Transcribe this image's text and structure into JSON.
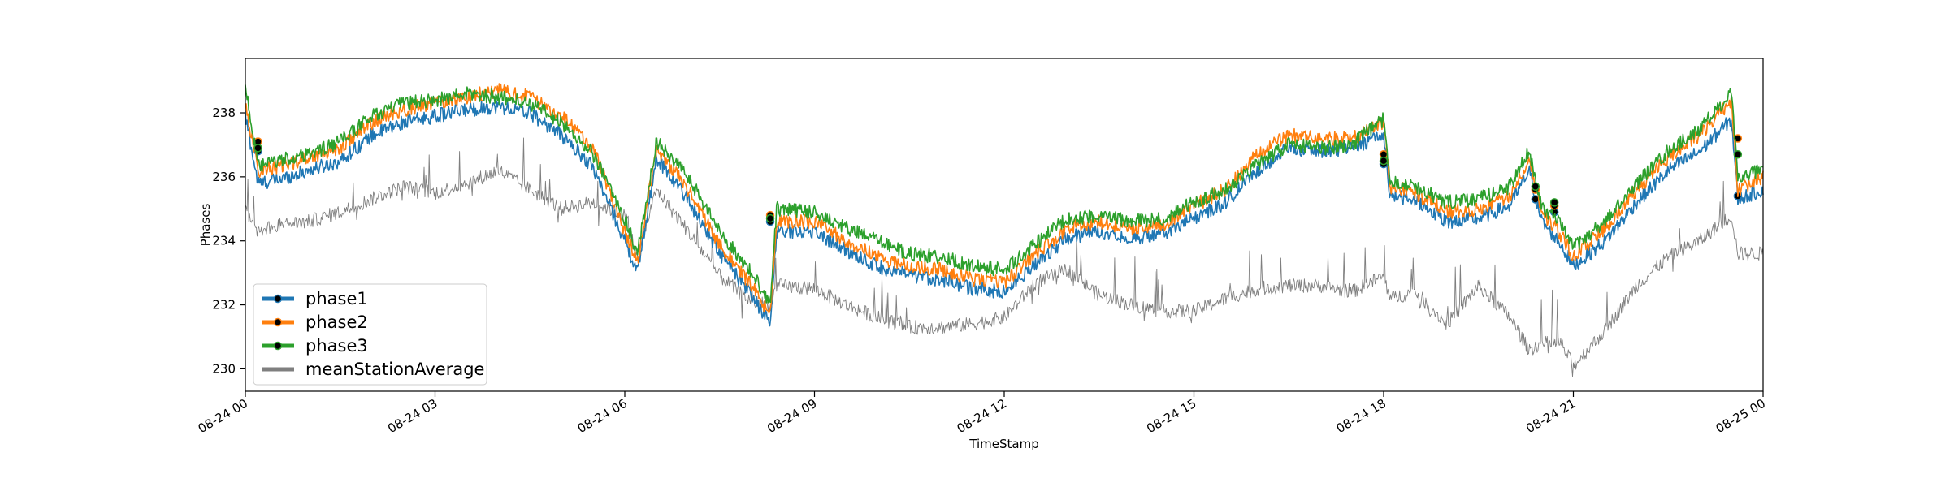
{
  "chart_data": {
    "type": "line",
    "title": "",
    "xlabel": "TimeStamp",
    "ylabel": "Phases",
    "xlim": [
      "08-24 00:00",
      "08-25 00:00"
    ],
    "ylim": [
      229.3,
      239.7
    ],
    "x_ticks": [
      {
        "hour": 0,
        "label": "08-24 00"
      },
      {
        "hour": 3,
        "label": "08-24 03"
      },
      {
        "hour": 6,
        "label": "08-24 06"
      },
      {
        "hour": 9,
        "label": "08-24 09"
      },
      {
        "hour": 12,
        "label": "08-24 12"
      },
      {
        "hour": 15,
        "label": "08-24 15"
      },
      {
        "hour": 18,
        "label": "08-24 18"
      },
      {
        "hour": 21,
        "label": "08-24 21"
      },
      {
        "hour": 24,
        "label": "08-25 00"
      }
    ],
    "y_ticks": [
      230,
      232,
      234,
      236,
      238
    ],
    "grid": false,
    "legend_position": "bottom-left",
    "x_hours": [
      0,
      0.2,
      0.5,
      1,
      1.5,
      2,
      2.5,
      3,
      3.5,
      4,
      4.5,
      5,
      5.5,
      6,
      6.2,
      6.5,
      7,
      7.5,
      8,
      8.3,
      8.4,
      9,
      9.5,
      10,
      10.5,
      11,
      11.5,
      12,
      12.5,
      13,
      13.5,
      14,
      14.5,
      15,
      15.5,
      16,
      16.5,
      17,
      17.5,
      18,
      18.1,
      18.5,
      19,
      19.5,
      20,
      20.3,
      20.5,
      20.8,
      21,
      21.5,
      22,
      22.5,
      23,
      23.5,
      23.6,
      24
    ],
    "series": [
      {
        "name": "phase1",
        "color": "#1f77b4",
        "values": [
          237.9,
          235.8,
          235.9,
          236.2,
          236.5,
          237.3,
          237.7,
          237.9,
          238.1,
          238.2,
          238.0,
          237.3,
          236.3,
          234.0,
          233.0,
          236.6,
          235.3,
          233.6,
          232.3,
          231.4,
          234.3,
          234.3,
          233.7,
          233.2,
          232.9,
          232.8,
          232.5,
          232.4,
          233.3,
          234.1,
          234.3,
          234.1,
          234.2,
          234.7,
          235.2,
          236.2,
          236.9,
          236.8,
          236.9,
          237.3,
          235.4,
          235.3,
          234.6,
          234.7,
          235.1,
          236.2,
          234.6,
          233.9,
          233.2,
          234.0,
          235.2,
          236.2,
          236.8,
          237.8,
          235.3,
          235.6
        ],
        "markers": [
          {
            "x": 0.2,
            "y": 236.8
          },
          {
            "x": 8.3,
            "y": 234.6
          },
          {
            "x": 18.0,
            "y": 236.4
          },
          {
            "x": 20.4,
            "y": 235.3
          },
          {
            "x": 20.7,
            "y": 234.9
          },
          {
            "x": 23.6,
            "y": 235.4
          }
        ]
      },
      {
        "name": "phase2",
        "color": "#ff7f0e",
        "values": [
          238.3,
          236.2,
          236.3,
          236.6,
          236.9,
          237.7,
          238.1,
          238.3,
          238.5,
          238.7,
          238.5,
          237.9,
          236.9,
          234.3,
          233.3,
          236.9,
          235.6,
          233.9,
          232.6,
          231.7,
          234.6,
          234.6,
          234.0,
          233.5,
          233.2,
          233.1,
          232.8,
          232.7,
          233.6,
          234.4,
          234.6,
          234.4,
          234.5,
          235.1,
          235.6,
          236.7,
          237.3,
          237.2,
          237.2,
          237.7,
          235.7,
          235.5,
          234.9,
          235.0,
          235.4,
          236.6,
          234.9,
          234.2,
          233.5,
          234.4,
          235.6,
          236.6,
          237.3,
          238.4,
          235.6,
          236.0
        ],
        "markers": [
          {
            "x": 0.2,
            "y": 237.1
          },
          {
            "x": 8.3,
            "y": 234.8
          },
          {
            "x": 18.0,
            "y": 236.7
          },
          {
            "x": 20.4,
            "y": 235.6
          },
          {
            "x": 20.7,
            "y": 235.1
          },
          {
            "x": 23.6,
            "y": 237.2
          }
        ]
      },
      {
        "name": "phase3",
        "color": "#2ca02c",
        "values": [
          238.9,
          236.3,
          236.5,
          236.7,
          237.1,
          237.9,
          238.3,
          238.4,
          238.6,
          238.5,
          238.3,
          237.7,
          236.7,
          234.7,
          233.6,
          237.1,
          236.0,
          234.3,
          233.0,
          232.1,
          235.0,
          234.9,
          234.4,
          234.0,
          233.6,
          233.5,
          233.2,
          233.1,
          233.9,
          234.7,
          234.8,
          234.6,
          234.7,
          235.2,
          235.6,
          236.4,
          237.0,
          236.9,
          237.0,
          237.8,
          235.9,
          235.7,
          235.2,
          235.3,
          235.7,
          236.8,
          235.1,
          234.5,
          233.8,
          234.6,
          235.8,
          236.8,
          237.5,
          238.6,
          235.9,
          236.3
        ],
        "markers": [
          {
            "x": 0.2,
            "y": 236.9
          },
          {
            "x": 8.3,
            "y": 234.7
          },
          {
            "x": 18.0,
            "y": 236.5
          },
          {
            "x": 20.4,
            "y": 235.7
          },
          {
            "x": 20.7,
            "y": 235.2
          },
          {
            "x": 23.6,
            "y": 236.7
          }
        ]
      },
      {
        "name": "meanStationAverage",
        "color": "#7f7f7f",
        "values": [
          235.0,
          234.3,
          234.5,
          234.6,
          234.9,
          235.3,
          235.7,
          235.5,
          235.8,
          236.2,
          235.6,
          235.0,
          235.2,
          234.8,
          233.5,
          235.6,
          234.3,
          232.9,
          232.1,
          232.0,
          232.6,
          232.5,
          232.0,
          231.6,
          231.3,
          231.3,
          231.4,
          231.6,
          232.7,
          233.1,
          232.3,
          232.0,
          231.8,
          231.8,
          232.2,
          232.5,
          232.6,
          232.6,
          232.4,
          232.9,
          232.2,
          232.4,
          231.4,
          232.6,
          231.6,
          230.6,
          230.8,
          230.8,
          230.1,
          231.2,
          232.6,
          233.5,
          234.0,
          234.8,
          233.6,
          233.6
        ]
      }
    ]
  }
}
